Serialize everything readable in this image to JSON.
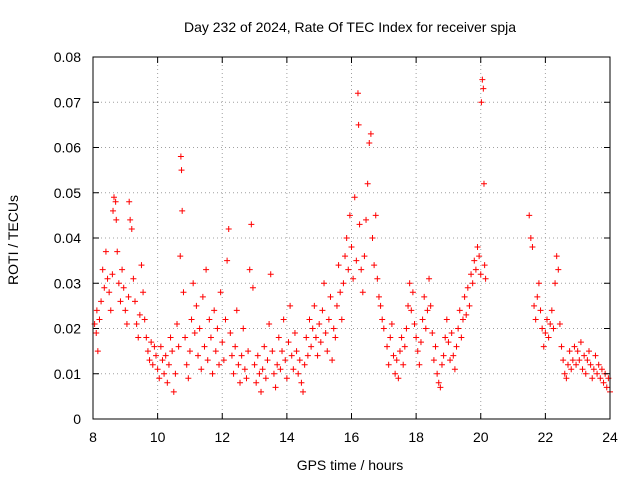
{
  "chart_data": {
    "type": "scatter",
    "title": "Day 232 of 2024, Rate Of TEC Index for receiver spja",
    "xlabel": "GPS time / hours",
    "ylabel": "ROTI / TECUs",
    "xlim": [
      8,
      24
    ],
    "ylim": [
      0,
      0.08
    ],
    "xticks": [
      8,
      10,
      12,
      14,
      16,
      18,
      20,
      22,
      24
    ],
    "xtick_labels": [
      "8",
      "10",
      "12",
      "14",
      "16",
      "18",
      "20",
      "22",
      "24"
    ],
    "yticks": [
      0,
      0.01,
      0.02,
      0.03,
      0.04,
      0.05,
      0.06,
      0.07,
      0.08
    ],
    "ytick_labels": [
      "0",
      "0.01",
      "0.02",
      "0.03",
      "0.04",
      "0.05",
      "0.06",
      "0.07",
      "0.08"
    ],
    "grid": true,
    "marker": "+",
    "color": "#ff0000",
    "series": [
      {
        "name": "ROTI",
        "points": [
          [
            8.05,
            0.021
          ],
          [
            8.1,
            0.019
          ],
          [
            8.12,
            0.024
          ],
          [
            8.15,
            0.015
          ],
          [
            8.2,
            0.022
          ],
          [
            8.25,
            0.026
          ],
          [
            8.3,
            0.033
          ],
          [
            8.35,
            0.029
          ],
          [
            8.4,
            0.037
          ],
          [
            8.45,
            0.031
          ],
          [
            8.5,
            0.028
          ],
          [
            8.55,
            0.024
          ],
          [
            8.6,
            0.032
          ],
          [
            8.62,
            0.046
          ],
          [
            8.65,
            0.049
          ],
          [
            8.7,
            0.048
          ],
          [
            8.72,
            0.044
          ],
          [
            8.75,
            0.037
          ],
          [
            8.8,
            0.03
          ],
          [
            8.85,
            0.026
          ],
          [
            8.9,
            0.033
          ],
          [
            8.95,
            0.029
          ],
          [
            9.0,
            0.024
          ],
          [
            9.05,
            0.021
          ],
          [
            9.1,
            0.027
          ],
          [
            9.12,
            0.048
          ],
          [
            9.15,
            0.044
          ],
          [
            9.2,
            0.042
          ],
          [
            9.25,
            0.031
          ],
          [
            9.3,
            0.026
          ],
          [
            9.35,
            0.021
          ],
          [
            9.4,
            0.018
          ],
          [
            9.45,
            0.023
          ],
          [
            9.5,
            0.034
          ],
          [
            9.55,
            0.028
          ],
          [
            9.6,
            0.022
          ],
          [
            9.65,
            0.018
          ],
          [
            9.7,
            0.015
          ],
          [
            9.75,
            0.013
          ],
          [
            9.8,
            0.017
          ],
          [
            9.85,
            0.012
          ],
          [
            9.9,
            0.016
          ],
          [
            9.95,
            0.014
          ],
          [
            10.0,
            0.011
          ],
          [
            10.05,
            0.009
          ],
          [
            10.1,
            0.016
          ],
          [
            10.15,
            0.013
          ],
          [
            10.2,
            0.01
          ],
          [
            10.25,
            0.014
          ],
          [
            10.3,
            0.008
          ],
          [
            10.35,
            0.012
          ],
          [
            10.4,
            0.018
          ],
          [
            10.45,
            0.015
          ],
          [
            10.5,
            0.006
          ],
          [
            10.55,
            0.01
          ],
          [
            10.6,
            0.021
          ],
          [
            10.65,
            0.016
          ],
          [
            10.7,
            0.036
          ],
          [
            10.72,
            0.058
          ],
          [
            10.74,
            0.055
          ],
          [
            10.76,
            0.046
          ],
          [
            10.8,
            0.028
          ],
          [
            10.85,
            0.018
          ],
          [
            10.9,
            0.012
          ],
          [
            10.95,
            0.009
          ],
          [
            11.0,
            0.015
          ],
          [
            11.05,
            0.022
          ],
          [
            11.1,
            0.03
          ],
          [
            11.15,
            0.019
          ],
          [
            11.2,
            0.025
          ],
          [
            11.25,
            0.014
          ],
          [
            11.3,
            0.02
          ],
          [
            11.35,
            0.011
          ],
          [
            11.4,
            0.027
          ],
          [
            11.45,
            0.016
          ],
          [
            11.5,
            0.033
          ],
          [
            11.55,
            0.013
          ],
          [
            11.6,
            0.022
          ],
          [
            11.65,
            0.018
          ],
          [
            11.7,
            0.01
          ],
          [
            11.75,
            0.024
          ],
          [
            11.8,
            0.015
          ],
          [
            11.85,
            0.02
          ],
          [
            11.9,
            0.012
          ],
          [
            11.95,
            0.028
          ],
          [
            12.0,
            0.017
          ],
          [
            12.05,
            0.013
          ],
          [
            12.1,
            0.022
          ],
          [
            12.15,
            0.035
          ],
          [
            12.2,
            0.042
          ],
          [
            12.25,
            0.019
          ],
          [
            12.3,
            0.014
          ],
          [
            12.35,
            0.01
          ],
          [
            12.4,
            0.016
          ],
          [
            12.45,
            0.024
          ],
          [
            12.5,
            0.012
          ],
          [
            12.55,
            0.008
          ],
          [
            12.6,
            0.014
          ],
          [
            12.65,
            0.02
          ],
          [
            12.7,
            0.011
          ],
          [
            12.75,
            0.009
          ],
          [
            12.8,
            0.015
          ],
          [
            12.85,
            0.033
          ],
          [
            12.9,
            0.043
          ],
          [
            12.95,
            0.029
          ],
          [
            13.0,
            0.012
          ],
          [
            13.05,
            0.008
          ],
          [
            13.1,
            0.014
          ],
          [
            13.15,
            0.01
          ],
          [
            13.2,
            0.006
          ],
          [
            13.25,
            0.011
          ],
          [
            13.3,
            0.016
          ],
          [
            13.35,
            0.009
          ],
          [
            13.4,
            0.013
          ],
          [
            13.45,
            0.021
          ],
          [
            13.5,
            0.032
          ],
          [
            13.55,
            0.015
          ],
          [
            13.6,
            0.01
          ],
          [
            13.65,
            0.007
          ],
          [
            13.7,
            0.012
          ],
          [
            13.75,
            0.018
          ],
          [
            13.8,
            0.011
          ],
          [
            13.85,
            0.015
          ],
          [
            13.9,
            0.022
          ],
          [
            13.95,
            0.013
          ],
          [
            14.0,
            0.009
          ],
          [
            14.05,
            0.017
          ],
          [
            14.1,
            0.025
          ],
          [
            14.15,
            0.014
          ],
          [
            14.2,
            0.011
          ],
          [
            14.25,
            0.019
          ],
          [
            14.3,
            0.015
          ],
          [
            14.35,
            0.01
          ],
          [
            14.4,
            0.013
          ],
          [
            14.45,
            0.008
          ],
          [
            14.5,
            0.006
          ],
          [
            14.55,
            0.012
          ],
          [
            14.6,
            0.018
          ],
          [
            14.65,
            0.014
          ],
          [
            14.7,
            0.022
          ],
          [
            14.75,
            0.016
          ],
          [
            14.8,
            0.02
          ],
          [
            14.85,
            0.025
          ],
          [
            14.9,
            0.018
          ],
          [
            14.95,
            0.014
          ],
          [
            15.0,
            0.021
          ],
          [
            15.05,
            0.017
          ],
          [
            15.1,
            0.024
          ],
          [
            15.15,
            0.03
          ],
          [
            15.2,
            0.019
          ],
          [
            15.25,
            0.015
          ],
          [
            15.3,
            0.022
          ],
          [
            15.35,
            0.027
          ],
          [
            15.4,
            0.013
          ],
          [
            15.45,
            0.02
          ],
          [
            15.5,
            0.018
          ],
          [
            15.55,
            0.025
          ],
          [
            15.6,
            0.034
          ],
          [
            15.65,
            0.028
          ],
          [
            15.7,
            0.022
          ],
          [
            15.75,
            0.03
          ],
          [
            15.8,
            0.036
          ],
          [
            15.85,
            0.04
          ],
          [
            15.9,
            0.033
          ],
          [
            15.95,
            0.045
          ],
          [
            16.0,
            0.038
          ],
          [
            16.05,
            0.031
          ],
          [
            16.1,
            0.049
          ],
          [
            16.15,
            0.035
          ],
          [
            16.2,
            0.072
          ],
          [
            16.22,
            0.065
          ],
          [
            16.25,
            0.043
          ],
          [
            16.3,
            0.033
          ],
          [
            16.35,
            0.028
          ],
          [
            16.4,
            0.036
          ],
          [
            16.45,
            0.044
          ],
          [
            16.5,
            0.052
          ],
          [
            16.55,
            0.061
          ],
          [
            16.6,
            0.063
          ],
          [
            16.65,
            0.04
          ],
          [
            16.7,
            0.034
          ],
          [
            16.75,
            0.045
          ],
          [
            16.8,
            0.031
          ],
          [
            16.85,
            0.027
          ],
          [
            16.9,
            0.025
          ],
          [
            16.95,
            0.022
          ],
          [
            17.0,
            0.02
          ],
          [
            17.1,
            0.016
          ],
          [
            17.15,
            0.012
          ],
          [
            17.2,
            0.018
          ],
          [
            17.25,
            0.021
          ],
          [
            17.3,
            0.014
          ],
          [
            17.35,
            0.01
          ],
          [
            17.4,
            0.013
          ],
          [
            17.45,
            0.009
          ],
          [
            17.5,
            0.015
          ],
          [
            17.55,
            0.018
          ],
          [
            17.6,
            0.012
          ],
          [
            17.65,
            0.016
          ],
          [
            17.7,
            0.02
          ],
          [
            17.75,
            0.025
          ],
          [
            17.8,
            0.03
          ],
          [
            17.85,
            0.024
          ],
          [
            17.9,
            0.028
          ],
          [
            17.95,
            0.021
          ],
          [
            18.0,
            0.018
          ],
          [
            18.05,
            0.015
          ],
          [
            18.1,
            0.012
          ],
          [
            18.15,
            0.017
          ],
          [
            18.2,
            0.022
          ],
          [
            18.25,
            0.027
          ],
          [
            18.3,
            0.02
          ],
          [
            18.35,
            0.024
          ],
          [
            18.4,
            0.031
          ],
          [
            18.45,
            0.025
          ],
          [
            18.5,
            0.019
          ],
          [
            18.55,
            0.013
          ],
          [
            18.6,
            0.016
          ],
          [
            18.65,
            0.01
          ],
          [
            18.7,
            0.008
          ],
          [
            18.75,
            0.007
          ],
          [
            18.8,
            0.012
          ],
          [
            18.85,
            0.014
          ],
          [
            18.9,
            0.018
          ],
          [
            18.95,
            0.022
          ],
          [
            19.0,
            0.017
          ],
          [
            19.05,
            0.013
          ],
          [
            19.1,
            0.019
          ],
          [
            19.15,
            0.014
          ],
          [
            19.2,
            0.011
          ],
          [
            19.25,
            0.016
          ],
          [
            19.3,
            0.02
          ],
          [
            19.35,
            0.024
          ],
          [
            19.4,
            0.018
          ],
          [
            19.45,
            0.022
          ],
          [
            19.5,
            0.027
          ],
          [
            19.55,
            0.023
          ],
          [
            19.6,
            0.029
          ],
          [
            19.65,
            0.025
          ],
          [
            19.7,
            0.032
          ],
          [
            19.75,
            0.03
          ],
          [
            19.8,
            0.035
          ],
          [
            19.85,
            0.033
          ],
          [
            19.9,
            0.038
          ],
          [
            19.95,
            0.036
          ],
          [
            20.0,
            0.032
          ],
          [
            20.02,
            0.07
          ],
          [
            20.05,
            0.075
          ],
          [
            20.08,
            0.073
          ],
          [
            20.1,
            0.052
          ],
          [
            20.12,
            0.034
          ],
          [
            20.15,
            0.031
          ],
          [
            21.5,
            0.045
          ],
          [
            21.55,
            0.04
          ],
          [
            21.6,
            0.038
          ],
          [
            21.65,
            0.025
          ],
          [
            21.7,
            0.022
          ],
          [
            21.75,
            0.027
          ],
          [
            21.8,
            0.03
          ],
          [
            21.85,
            0.024
          ],
          [
            21.9,
            0.02
          ],
          [
            21.95,
            0.016
          ],
          [
            22.0,
            0.019
          ],
          [
            22.05,
            0.022
          ],
          [
            22.1,
            0.018
          ],
          [
            22.15,
            0.021
          ],
          [
            22.2,
            0.024
          ],
          [
            22.25,
            0.02
          ],
          [
            22.3,
            0.03
          ],
          [
            22.35,
            0.036
          ],
          [
            22.4,
            0.033
          ],
          [
            22.45,
            0.021
          ],
          [
            22.5,
            0.016
          ],
          [
            22.55,
            0.013
          ],
          [
            22.6,
            0.01
          ],
          [
            22.65,
            0.009
          ],
          [
            22.7,
            0.012
          ],
          [
            22.75,
            0.015
          ],
          [
            22.8,
            0.011
          ],
          [
            22.85,
            0.013
          ],
          [
            22.9,
            0.016
          ],
          [
            22.95,
            0.012
          ],
          [
            23.0,
            0.015
          ],
          [
            23.05,
            0.013
          ],
          [
            23.1,
            0.017
          ],
          [
            23.15,
            0.011
          ],
          [
            23.2,
            0.014
          ],
          [
            23.25,
            0.01
          ],
          [
            23.3,
            0.013
          ],
          [
            23.35,
            0.015
          ],
          [
            23.4,
            0.012
          ],
          [
            23.45,
            0.009
          ],
          [
            23.5,
            0.011
          ],
          [
            23.55,
            0.014
          ],
          [
            23.6,
            0.01
          ],
          [
            23.65,
            0.012
          ],
          [
            23.7,
            0.009
          ],
          [
            23.75,
            0.011
          ],
          [
            23.8,
            0.008
          ],
          [
            23.85,
            0.01
          ],
          [
            23.9,
            0.007
          ],
          [
            23.95,
            0.009
          ],
          [
            24.0,
            0.006
          ]
        ]
      }
    ]
  }
}
